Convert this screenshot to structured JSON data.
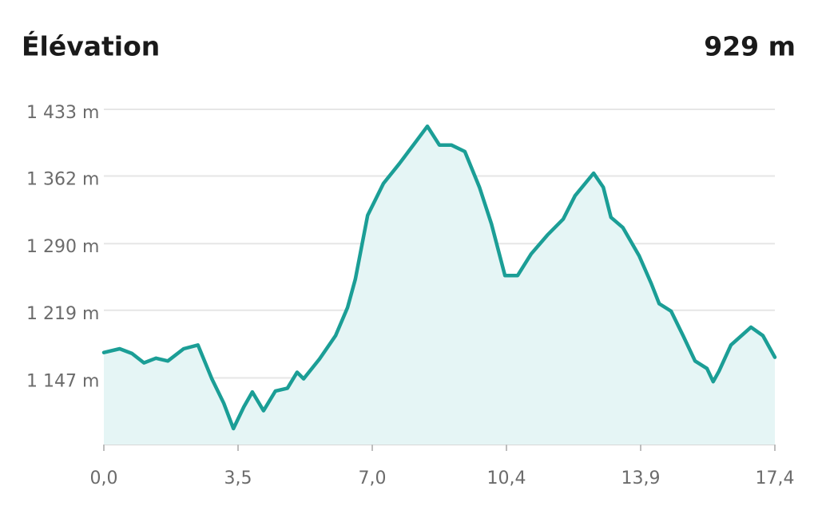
{
  "chart_data": {
    "type": "area",
    "title": "Élévation",
    "summary": "929 m",
    "color": "#1b9e96",
    "fill": "#e5f5f5",
    "grid": true,
    "x": [
      0,
      0.41,
      0.73,
      1.04,
      1.35,
      1.66,
      2.07,
      2.44,
      2.8,
      3.11,
      3.36,
      3.63,
      3.85,
      4.14,
      4.45,
      4.76,
      5.01,
      5.18,
      5.59,
      6.01,
      6.32,
      6.52,
      6.84,
      7.25,
      7.66,
      8.08,
      8.39,
      8.7,
      9.01,
      9.36,
      9.74,
      10.05,
      10.4,
      10.73,
      11.08,
      11.5,
      11.91,
      12.22,
      12.7,
      12.95,
      13.15,
      13.46,
      13.88,
      14.19,
      14.4,
      14.71,
      15.02,
      15.33,
      15.64,
      15.8,
      15.95,
      16.26,
      16.78,
      17.09,
      17.4
    ],
    "values": [
      1174,
      1178,
      1173,
      1163,
      1168,
      1165,
      1178,
      1182,
      1146,
      1120,
      1093,
      1116,
      1132,
      1112,
      1133,
      1136,
      1153,
      1146,
      1167,
      1192,
      1222,
      1252,
      1320,
      1354,
      1375,
      1398,
      1415,
      1395,
      1395,
      1388,
      1350,
      1311,
      1256,
      1256,
      1279,
      1299,
      1316,
      1341,
      1365,
      1350,
      1318,
      1307,
      1277,
      1248,
      1226,
      1218,
      1192,
      1165,
      1157,
      1143,
      1154,
      1182,
      1201,
      1192,
      1169
    ],
    "xlim": [
      0,
      17.4
    ],
    "ylim": [
      1076,
      1433
    ],
    "xticks": [
      {
        "value": 0,
        "label": "0,0"
      },
      {
        "value": 3.48,
        "label": "3,5"
      },
      {
        "value": 6.96,
        "label": "7,0"
      },
      {
        "value": 10.44,
        "label": "10,4"
      },
      {
        "value": 13.92,
        "label": "13,9"
      },
      {
        "value": 17.4,
        "label": "17,4"
      }
    ],
    "yticks": [
      {
        "value": 1147,
        "label": "1 147 m"
      },
      {
        "value": 1219,
        "label": "1 219 m"
      },
      {
        "value": 1290,
        "label": "1 290 m"
      },
      {
        "value": 1362,
        "label": "1 362 m"
      },
      {
        "value": 1433,
        "label": "1 433 m"
      }
    ]
  }
}
